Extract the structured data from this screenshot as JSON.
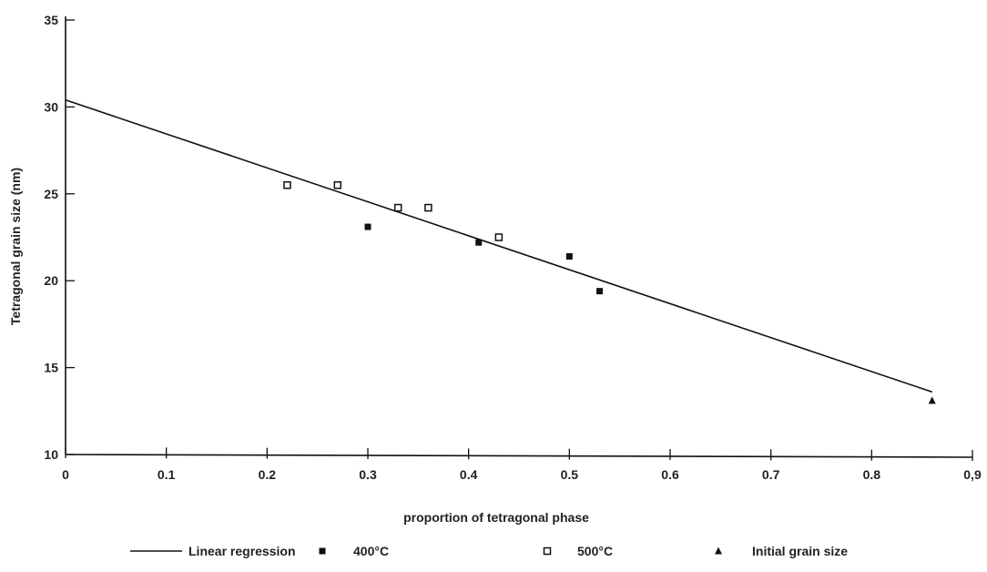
{
  "chart_data": {
    "type": "scatter",
    "xlabel": "proportion of tetragonal phase",
    "ylabel": "Tetragonal grain size (nm)",
    "xlim": [
      0,
      0.9
    ],
    "ylim": [
      10,
      35
    ],
    "x_ticks": [
      0,
      0.1,
      0.2,
      0.3,
      0.4,
      0.5,
      0.6,
      0.7,
      0.8,
      0.9
    ],
    "x_tick_labels": [
      "0",
      "0.1",
      "0.2",
      "0.3",
      "0.4",
      "0.5",
      "0.6",
      "0.7",
      "0.8",
      "0,9"
    ],
    "y_ticks": [
      10,
      15,
      20,
      25,
      30,
      35
    ],
    "y_tick_labels": [
      "10",
      "15",
      "20",
      "25",
      "30",
      "35"
    ],
    "grid": false,
    "legend_position": "bottom",
    "regression": {
      "name": "Linear regression",
      "x": [
        0,
        0.86
      ],
      "y": [
        30.4,
        13.6
      ]
    },
    "series": [
      {
        "name": "400°C",
        "marker": "filled-square",
        "points": [
          {
            "x": 0.3,
            "y": 23.1
          },
          {
            "x": 0.41,
            "y": 22.2
          },
          {
            "x": 0.5,
            "y": 21.4
          },
          {
            "x": 0.53,
            "y": 19.4
          }
        ]
      },
      {
        "name": "500°C",
        "marker": "open-square",
        "points": [
          {
            "x": 0.22,
            "y": 25.5
          },
          {
            "x": 0.27,
            "y": 25.5
          },
          {
            "x": 0.33,
            "y": 24.2
          },
          {
            "x": 0.36,
            "y": 24.2
          },
          {
            "x": 0.43,
            "y": 22.5
          }
        ]
      },
      {
        "name": "Initial grain size",
        "marker": "triangle",
        "points": [
          {
            "x": 0.86,
            "y": 13.1
          }
        ]
      }
    ]
  }
}
